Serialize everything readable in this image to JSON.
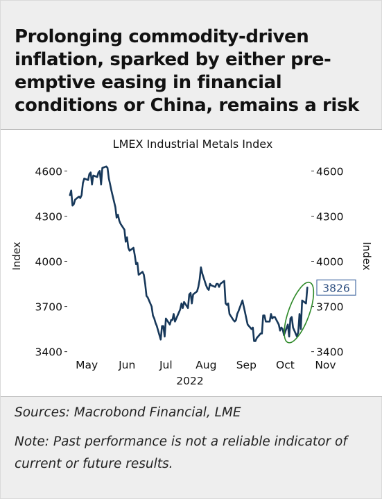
{
  "headline": "Prolonging commodity-driven inflation, sparked by either pre-emptive easing in financial conditions or China, remains a risk",
  "colors": {
    "line": "#17385a",
    "highlight_ellipse": "#2f8a2a",
    "callout_border": "#4a6fa5",
    "callout_text": "#2e4f80"
  },
  "chart_data": {
    "type": "line",
    "title": "LMEX Industrial Metals Index",
    "ylabel_left": "Index",
    "ylabel_right": "Index",
    "x_months": [
      "May",
      "Jun",
      "Jul",
      "Aug",
      "Sep",
      "Oct",
      "Nov"
    ],
    "x_year": "2022",
    "ylim": [
      3380,
      4680
    ],
    "yticks": [
      3400,
      3700,
      4000,
      4300,
      4600
    ],
    "grid": false,
    "last_value_label": "3826",
    "highlight": "green ellipse around the late-October rebound",
    "series": [
      {
        "name": "",
        "x": [
          "2022-05-02",
          "2022-05-03",
          "2022-05-04",
          "2022-05-05",
          "2022-05-06",
          "2022-05-09",
          "2022-05-10",
          "2022-05-11",
          "2022-05-12",
          "2022-05-13",
          "2022-05-16",
          "2022-05-17",
          "2022-05-18",
          "2022-05-19",
          "2022-05-20",
          "2022-05-23",
          "2022-05-24",
          "2022-05-25",
          "2022-05-26",
          "2022-05-27",
          "2022-05-30",
          "2022-05-31",
          "2022-06-01",
          "2022-06-02",
          "2022-06-03",
          "2022-06-06",
          "2022-06-07",
          "2022-06-08",
          "2022-06-09",
          "2022-06-10",
          "2022-06-13",
          "2022-06-14",
          "2022-06-15",
          "2022-06-16",
          "2022-06-17",
          "2022-06-20",
          "2022-06-21",
          "2022-06-22",
          "2022-06-23",
          "2022-06-24",
          "2022-06-27",
          "2022-06-28",
          "2022-06-29",
          "2022-06-30",
          "2022-07-01",
          "2022-07-04",
          "2022-07-05",
          "2022-07-06",
          "2022-07-07",
          "2022-07-08",
          "2022-07-11",
          "2022-07-12",
          "2022-07-13",
          "2022-07-14",
          "2022-07-15",
          "2022-07-18",
          "2022-07-19",
          "2022-07-20",
          "2022-07-21",
          "2022-07-22",
          "2022-07-25",
          "2022-07-26",
          "2022-07-27",
          "2022-07-28",
          "2022-07-29",
          "2022-08-01",
          "2022-08-02",
          "2022-08-03",
          "2022-08-04",
          "2022-08-05",
          "2022-08-08",
          "2022-08-09",
          "2022-08-10",
          "2022-08-11",
          "2022-08-12",
          "2022-08-15",
          "2022-08-16",
          "2022-08-17",
          "2022-08-18",
          "2022-08-19",
          "2022-08-22",
          "2022-08-23",
          "2022-08-24",
          "2022-08-25",
          "2022-08-26",
          "2022-08-29",
          "2022-08-30",
          "2022-08-31",
          "2022-09-01",
          "2022-09-02",
          "2022-09-05",
          "2022-09-06",
          "2022-09-07",
          "2022-09-08",
          "2022-09-09",
          "2022-09-12",
          "2022-09-13",
          "2022-09-14",
          "2022-09-15",
          "2022-09-16",
          "2022-09-19",
          "2022-09-20",
          "2022-09-21",
          "2022-09-22",
          "2022-09-23",
          "2022-09-26",
          "2022-09-27",
          "2022-09-28",
          "2022-09-29",
          "2022-09-30",
          "2022-10-03",
          "2022-10-04",
          "2022-10-05",
          "2022-10-06",
          "2022-10-07",
          "2022-10-10",
          "2022-10-11",
          "2022-10-12",
          "2022-10-13",
          "2022-10-14",
          "2022-10-17",
          "2022-10-18",
          "2022-10-19",
          "2022-10-20",
          "2022-10-21",
          "2022-10-24",
          "2022-10-25",
          "2022-10-26",
          "2022-10-27",
          "2022-10-28",
          "2022-10-31",
          "2022-11-01"
        ],
        "values": [
          4440,
          4470,
          4370,
          4380,
          4410,
          4430,
          4420,
          4440,
          4520,
          4550,
          4540,
          4580,
          4590,
          4510,
          4570,
          4560,
          4590,
          4600,
          4510,
          4620,
          4630,
          4620,
          4550,
          4510,
          4470,
          4360,
          4290,
          4310,
          4270,
          4250,
          4210,
          4130,
          4160,
          4090,
          4070,
          4090,
          4040,
          3980,
          3990,
          3910,
          3930,
          3910,
          3850,
          3770,
          3760,
          3700,
          3640,
          3620,
          3590,
          3570,
          3480,
          3570,
          3570,
          3500,
          3620,
          3580,
          3610,
          3610,
          3650,
          3600,
          3660,
          3680,
          3720,
          3690,
          3730,
          3690,
          3780,
          3790,
          3720,
          3780,
          3800,
          3830,
          3880,
          3960,
          3920,
          3840,
          3820,
          3810,
          3850,
          3840,
          3830,
          3850,
          3850,
          3830,
          3850,
          3870,
          3720,
          3710,
          3720,
          3650,
          3610,
          3600,
          3610,
          3650,
          3670,
          3740,
          3700,
          3660,
          3620,
          3580,
          3550,
          3560,
          3470,
          3470,
          3490,
          3520,
          3520,
          3640,
          3640,
          3600,
          3600,
          3650,
          3620,
          3630,
          3630,
          3580,
          3540,
          3560,
          3550,
          3510,
          3580,
          3500,
          3620,
          3630,
          3560,
          3500,
          3530,
          3650,
          3550,
          3740,
          3720,
          3826
        ]
      }
    ]
  },
  "footer": {
    "sources": "Sources: Macrobond Financial, LME",
    "note": "Note: Past performance is not a reliable indicator of current or future results."
  }
}
